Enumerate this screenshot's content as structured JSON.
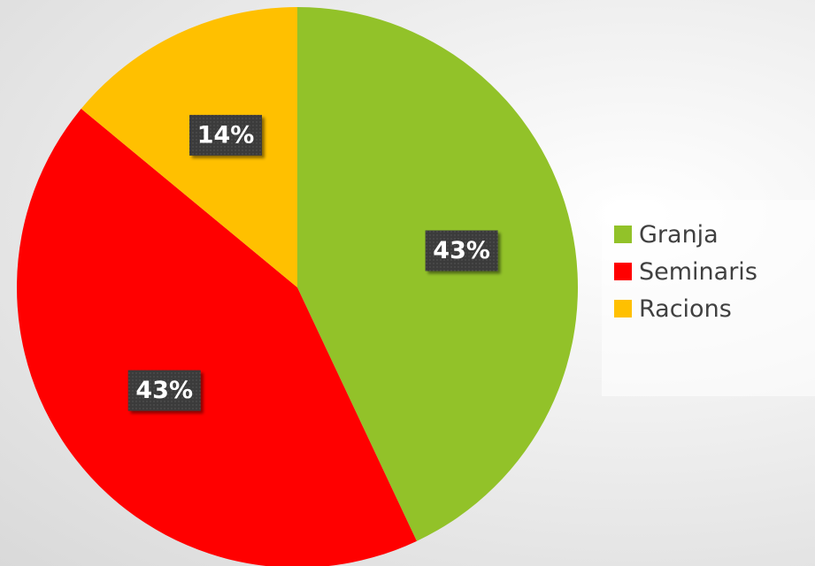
{
  "chart_data": {
    "type": "pie",
    "categories": [
      "Granja",
      "Seminaris",
      "Racions"
    ],
    "values": [
      43,
      43,
      14
    ],
    "data_labels": [
      "43%",
      "43%",
      "14%"
    ],
    "colors": [
      "#92c229",
      "#ff0000",
      "#ffc000"
    ],
    "start_angle_deg": 0,
    "direction": "clockwise",
    "legend": {
      "placement": "right",
      "entries": [
        "Granja",
        "Seminaris",
        "Racions"
      ]
    },
    "title": ""
  }
}
